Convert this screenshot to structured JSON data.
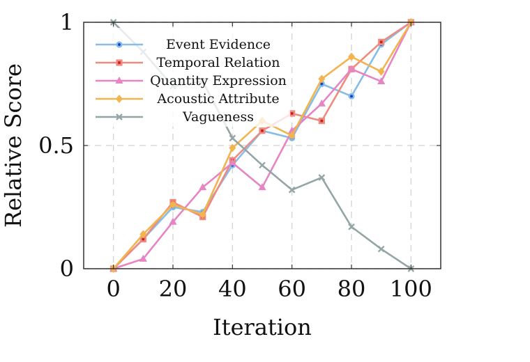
{
  "chart_data": {
    "type": "line",
    "title": "",
    "xlabel": "Iteration",
    "ylabel": "Relative Score",
    "xlim": [
      -10,
      110
    ],
    "ylim": [
      0,
      1
    ],
    "xticks": [
      0,
      20,
      40,
      60,
      80,
      100
    ],
    "yticks": [
      0,
      0.5,
      1
    ],
    "xtick_labels": [
      "0",
      "20",
      "40",
      "60",
      "80",
      "100"
    ],
    "ytick_labels": [
      "0",
      "0.5",
      "1"
    ],
    "grid": true,
    "legend_position": "top-left",
    "x": [
      0,
      10,
      20,
      30,
      40,
      50,
      60,
      70,
      80,
      90,
      100
    ],
    "series": [
      {
        "name": "Event Evidence",
        "color": "#85bde8",
        "marker": "circle",
        "values": [
          0,
          0.12,
          0.25,
          0.23,
          0.42,
          0.56,
          0.53,
          0.75,
          0.7,
          0.91,
          1.0
        ]
      },
      {
        "name": "Temporal Relation",
        "color": "#ef8a80",
        "marker": "square",
        "values": [
          0,
          0.12,
          0.27,
          0.21,
          0.44,
          0.56,
          0.63,
          0.6,
          0.81,
          0.92,
          1.0
        ]
      },
      {
        "name": "Quantity Expression",
        "color": "#e784c3",
        "marker": "triangle",
        "values": [
          0,
          0.04,
          0.19,
          0.33,
          0.43,
          0.33,
          0.56,
          0.67,
          0.81,
          0.76,
          1.0
        ]
      },
      {
        "name": "Acoustic Attribute",
        "color": "#f2b44e",
        "marker": "diamond",
        "values": [
          0,
          0.14,
          0.26,
          0.22,
          0.49,
          0.6,
          0.54,
          0.77,
          0.86,
          0.8,
          1.0
        ]
      },
      {
        "name": "Vagueness",
        "color": "#95a5a6",
        "marker": "cross",
        "values": [
          1.0,
          0.88,
          0.74,
          0.76,
          0.53,
          0.42,
          0.32,
          0.37,
          0.17,
          0.08,
          0.0
        ]
      }
    ]
  }
}
